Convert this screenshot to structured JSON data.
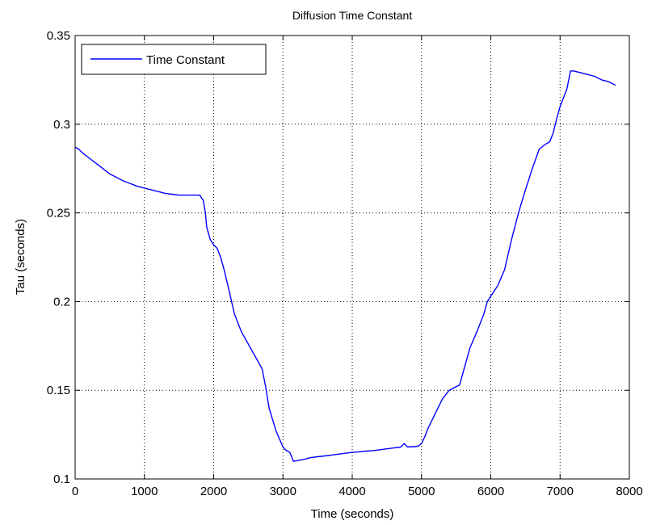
{
  "chart_data": {
    "type": "line",
    "title": "Diffusion Time Constant",
    "xlabel": "Time (seconds)",
    "ylabel": "Tau (seconds)",
    "xlim": [
      0,
      8000
    ],
    "ylim": [
      0.1,
      0.35
    ],
    "xticks": [
      0,
      1000,
      2000,
      3000,
      4000,
      5000,
      6000,
      7000,
      8000
    ],
    "xtick_labels": [
      "0",
      "1000",
      "2000",
      "3000",
      "4000",
      "5000",
      "6000",
      "7000",
      "8000"
    ],
    "yticks": [
      0.1,
      0.15,
      0.2,
      0.25,
      0.3,
      0.35
    ],
    "ytick_labels": [
      "0.1",
      "0.15",
      "0.2",
      "0.25",
      "0.3",
      "0.35"
    ],
    "grid": true,
    "legend_position": "top-left",
    "series": [
      {
        "name": "Time Constant",
        "color": "#0000ff",
        "x": [
          0,
          50,
          100,
          200,
          300,
          400,
          500,
          600,
          700,
          800,
          900,
          1000,
          1100,
          1200,
          1300,
          1400,
          1500,
          1600,
          1700,
          1800,
          1850,
          1880,
          1900,
          1950,
          2000,
          2050,
          2100,
          2150,
          2200,
          2300,
          2400,
          2500,
          2600,
          2700,
          2750,
          2800,
          2900,
          3000,
          3050,
          3100,
          3150,
          3200,
          3300,
          3400,
          3500,
          3600,
          3700,
          3800,
          3900,
          4000,
          4100,
          4200,
          4300,
          4400,
          4500,
          4600,
          4700,
          4750,
          4800,
          4850,
          4900,
          4950,
          5000,
          5050,
          5100,
          5200,
          5300,
          5400,
          5500,
          5550,
          5600,
          5700,
          5800,
          5900,
          5950,
          6000,
          6100,
          6200,
          6300,
          6400,
          6500,
          6600,
          6700,
          6800,
          6850,
          6900,
          6950,
          7000,
          7050,
          7100,
          7150,
          7200,
          7300,
          7400,
          7500,
          7600,
          7700,
          7800
        ],
        "y": [
          0.287,
          0.286,
          0.284,
          0.281,
          0.278,
          0.275,
          0.272,
          0.27,
          0.268,
          0.2665,
          0.265,
          0.264,
          0.263,
          0.262,
          0.261,
          0.2605,
          0.26,
          0.26,
          0.26,
          0.26,
          0.257,
          0.25,
          0.242,
          0.235,
          0.232,
          0.23,
          0.225,
          0.218,
          0.21,
          0.193,
          0.183,
          0.176,
          0.169,
          0.162,
          0.152,
          0.14,
          0.127,
          0.118,
          0.116,
          0.115,
          0.11,
          0.1103,
          0.111,
          0.112,
          0.1125,
          0.113,
          0.1135,
          0.114,
          0.1145,
          0.115,
          0.1153,
          0.1157,
          0.116,
          0.1165,
          0.117,
          0.1175,
          0.118,
          0.12,
          0.118,
          0.1182,
          0.1182,
          0.1185,
          0.12,
          0.124,
          0.129,
          0.137,
          0.145,
          0.15,
          0.152,
          0.153,
          0.16,
          0.174,
          0.183,
          0.193,
          0.2,
          0.203,
          0.209,
          0.218,
          0.235,
          0.25,
          0.263,
          0.275,
          0.286,
          0.289,
          0.29,
          0.295,
          0.303,
          0.31,
          0.315,
          0.32,
          0.33,
          0.33,
          0.329,
          0.328,
          0.327,
          0.325,
          0.324,
          0.322
        ]
      }
    ]
  }
}
